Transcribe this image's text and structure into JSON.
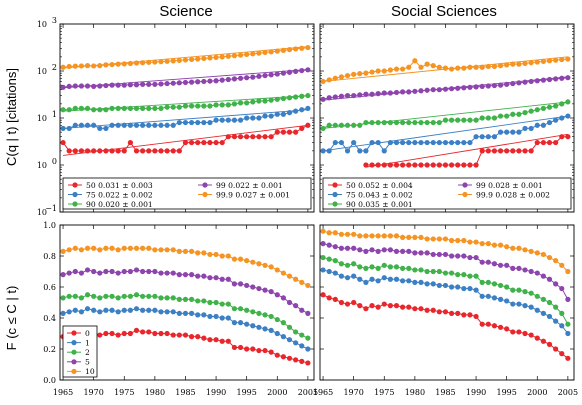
{
  "chart_data": [
    {
      "type": "line",
      "title": "Science",
      "ylabel": "C(q | t) [citations]",
      "yscale": "log",
      "ylim": [
        0.1,
        1000
      ],
      "xlim": [
        1964.5,
        2006
      ],
      "yticks": [
        {
          "v": 0.1,
          "base": "10",
          "exp": "−1"
        },
        {
          "v": 1,
          "base": "10",
          "exp": "0"
        },
        {
          "v": 10,
          "base": "10",
          "exp": "1"
        },
        {
          "v": 100,
          "base": "10",
          "exp": "2"
        },
        {
          "v": 1000,
          "base": "10",
          "exp": "3"
        }
      ],
      "legend_placement": "bottom",
      "series": [
        {
          "name": "50",
          "fit_label": "50 0.031 ± 0.003",
          "color": "#e8262b",
          "start": 1965,
          "values": [
            3,
            2,
            2,
            2,
            2,
            2,
            2,
            2,
            2,
            2,
            2,
            3,
            2,
            2,
            2,
            2,
            2,
            2,
            2,
            2,
            3,
            3,
            3,
            3,
            3,
            3,
            3,
            4,
            4,
            4,
            4,
            4,
            4,
            4,
            4,
            5,
            5,
            5,
            5,
            6,
            7
          ],
          "fit": [
            1.6,
            7
          ]
        },
        {
          "name": "75",
          "fit_label": "75 0.022 ± 0.002",
          "color": "#3b7fc4",
          "start": 1965,
          "values": [
            6,
            6,
            7,
            7,
            7,
            7,
            6,
            6,
            7,
            7,
            7,
            7,
            7,
            7,
            7,
            7,
            7,
            7,
            7,
            8,
            8,
            8,
            8,
            8,
            8,
            9,
            9,
            9,
            9,
            9,
            10,
            10,
            10,
            11,
            11,
            12,
            12,
            13,
            14,
            15,
            16
          ],
          "fit": [
            6,
            15
          ]
        },
        {
          "name": "90",
          "fit_label": "90 0.020 ± 0.001",
          "color": "#3fb24a",
          "start": 1965,
          "values": [
            15,
            15,
            16,
            16,
            16,
            15,
            15,
            15,
            16,
            16,
            16,
            16,
            16,
            16,
            16,
            16,
            16,
            17,
            17,
            17,
            18,
            18,
            18,
            18,
            18,
            19,
            19,
            19,
            20,
            21,
            21,
            22,
            23,
            23,
            24,
            25,
            26,
            27,
            28,
            29,
            30
          ],
          "fit": [
            14,
            30
          ]
        },
        {
          "name": "99",
          "fit_label": "99 0.022 ± 0.001",
          "color": "#8d44ad",
          "start": 1965,
          "values": [
            45,
            47,
            48,
            48,
            48,
            47,
            48,
            49,
            50,
            50,
            50,
            51,
            51,
            52,
            52,
            52,
            53,
            54,
            55,
            56,
            57,
            58,
            59,
            60,
            61,
            62,
            64,
            66,
            68,
            70,
            72,
            74,
            77,
            80,
            83,
            86,
            90,
            94,
            98,
            102,
            106
          ],
          "fit": [
            44,
            108
          ]
        },
        {
          "name": "99.9",
          "fit_label": "99.9 0.027 ± 0.001",
          "color": "#f59422",
          "start": 1965,
          "values": [
            120,
            125,
            127,
            128,
            130,
            128,
            130,
            135,
            137,
            140,
            142,
            145,
            148,
            150,
            153,
            155,
            158,
            161,
            164,
            168,
            172,
            176,
            180,
            185,
            190,
            195,
            200,
            206,
            212,
            218,
            225,
            232,
            240,
            248,
            256,
            265,
            275,
            285,
            295,
            305,
            315
          ],
          "fit": [
            115,
            330
          ]
        }
      ]
    },
    {
      "type": "line",
      "title": "Social Sciences",
      "ylabel": "",
      "yscale": "log",
      "ylim": [
        0.1,
        1000
      ],
      "xlim": [
        1964.5,
        2006
      ],
      "legend_placement": "bottom",
      "series": [
        {
          "name": "50",
          "fit_label": "50 0.052 ± 0.004",
          "color": "#e8262b",
          "start": 1972,
          "values": [
            1,
            1,
            1,
            1,
            1,
            1,
            1,
            1,
            1,
            1,
            1,
            1,
            1,
            1,
            1,
            1,
            1,
            1,
            1,
            2,
            2,
            2,
            2,
            2,
            2,
            2,
            2,
            2,
            3,
            3,
            3,
            3,
            4,
            4
          ],
          "fit": [
            0.9,
            4.5
          ]
        },
        {
          "name": "75",
          "fit_label": "75 0.043 ± 0.002",
          "color": "#3b7fc4",
          "start": 1965,
          "values": [
            2,
            2,
            3,
            3,
            2,
            3,
            2,
            2,
            3,
            3,
            2,
            3,
            3,
            3,
            3,
            3,
            3,
            3,
            3,
            3,
            3,
            3,
            3,
            3,
            3,
            4,
            4,
            4,
            4,
            5,
            5,
            5,
            5,
            6,
            6,
            7,
            7,
            8,
            9,
            10,
            11
          ],
          "fit": [
            2,
            11
          ]
        },
        {
          "name": "90",
          "fit_label": "90 0.035 ± 0.001",
          "color": "#3fb24a",
          "start": 1965,
          "values": [
            6,
            7,
            7,
            7,
            7,
            7,
            7,
            8,
            8,
            8,
            8,
            8,
            8,
            8,
            8,
            8,
            8,
            8,
            8,
            8,
            9,
            9,
            9,
            9,
            9,
            9,
            10,
            10,
            10,
            11,
            11,
            12,
            12,
            13,
            14,
            15,
            16,
            17,
            18,
            20,
            22
          ],
          "fit": [
            6,
            22
          ]
        },
        {
          "name": "99",
          "fit_label": "99 0.028 ± 0.001",
          "color": "#8d44ad",
          "start": 1965,
          "values": [
            25,
            27,
            28,
            29,
            30,
            30,
            31,
            32,
            32,
            33,
            34,
            34,
            35,
            36,
            36,
            37,
            38,
            39,
            40,
            40,
            41,
            42,
            43,
            44,
            45,
            46,
            47,
            48,
            49,
            50,
            52,
            54,
            56,
            58,
            60,
            62,
            64,
            66,
            68,
            70,
            72
          ],
          "fit": [
            24,
            75
          ]
        },
        {
          "name": "99.9",
          "fit_label": "99.9 0.028 ± 0.002",
          "color": "#f59422",
          "start": 1965,
          "values": [
            60,
            65,
            70,
            75,
            80,
            85,
            88,
            90,
            95,
            100,
            100,
            105,
            110,
            110,
            120,
            165,
            120,
            140,
            130,
            120,
            115,
            110,
            115,
            115,
            120,
            120,
            120,
            125,
            125,
            130,
            135,
            140,
            140,
            145,
            150,
            155,
            160,
            165,
            170,
            175,
            180
          ],
          "fit": [
            60,
            200
          ]
        }
      ]
    },
    {
      "type": "line",
      "title": "",
      "ylabel": "F (c ≤ C | t)",
      "xlabel": "",
      "ylim": [
        0.0,
        1.0
      ],
      "xlim": [
        1964.5,
        2006
      ],
      "yticks": [
        "0.0",
        "0.2",
        "0.4",
        "0.6",
        "0.8",
        "1.0"
      ],
      "xticks": [
        "1965",
        "1970",
        "1975",
        "1980",
        "1985",
        "1990",
        "1995",
        "2000",
        "2005"
      ],
      "legend_placement": "bottom-left",
      "series": [
        {
          "name": "0",
          "color": "#e8262b",
          "start": 1965,
          "values": [
            0.28,
            0.29,
            0.3,
            0.28,
            0.31,
            0.3,
            0.29,
            0.3,
            0.3,
            0.29,
            0.3,
            0.3,
            0.32,
            0.31,
            0.31,
            0.3,
            0.3,
            0.3,
            0.29,
            0.29,
            0.29,
            0.28,
            0.28,
            0.27,
            0.26,
            0.26,
            0.25,
            0.25,
            0.21,
            0.21,
            0.2,
            0.2,
            0.19,
            0.19,
            0.18,
            0.16,
            0.15,
            0.14,
            0.13,
            0.12,
            0.11
          ]
        },
        {
          "name": "1",
          "color": "#3b7fc4",
          "start": 1965,
          "values": [
            0.43,
            0.44,
            0.45,
            0.44,
            0.46,
            0.45,
            0.44,
            0.45,
            0.45,
            0.44,
            0.45,
            0.45,
            0.46,
            0.45,
            0.45,
            0.45,
            0.44,
            0.44,
            0.44,
            0.43,
            0.43,
            0.43,
            0.42,
            0.42,
            0.41,
            0.41,
            0.4,
            0.4,
            0.37,
            0.37,
            0.36,
            0.35,
            0.34,
            0.33,
            0.32,
            0.3,
            0.28,
            0.26,
            0.24,
            0.22,
            0.2
          ]
        },
        {
          "name": "2",
          "color": "#3fb24a",
          "start": 1965,
          "values": [
            0.53,
            0.54,
            0.54,
            0.53,
            0.55,
            0.54,
            0.53,
            0.54,
            0.54,
            0.53,
            0.54,
            0.54,
            0.55,
            0.54,
            0.54,
            0.54,
            0.53,
            0.53,
            0.53,
            0.52,
            0.52,
            0.52,
            0.51,
            0.51,
            0.5,
            0.5,
            0.49,
            0.49,
            0.46,
            0.46,
            0.45,
            0.44,
            0.43,
            0.42,
            0.41,
            0.39,
            0.37,
            0.34,
            0.31,
            0.29,
            0.27
          ]
        },
        {
          "name": "5",
          "color": "#8d44ad",
          "start": 1965,
          "values": [
            0.68,
            0.69,
            0.7,
            0.69,
            0.71,
            0.7,
            0.69,
            0.7,
            0.7,
            0.69,
            0.7,
            0.7,
            0.71,
            0.7,
            0.7,
            0.7,
            0.69,
            0.69,
            0.69,
            0.68,
            0.68,
            0.68,
            0.67,
            0.67,
            0.66,
            0.66,
            0.65,
            0.65,
            0.62,
            0.62,
            0.61,
            0.6,
            0.59,
            0.58,
            0.57,
            0.55,
            0.53,
            0.5,
            0.48,
            0.45,
            0.43
          ]
        },
        {
          "name": "10",
          "color": "#f59422",
          "start": 1965,
          "values": [
            0.83,
            0.84,
            0.85,
            0.84,
            0.85,
            0.85,
            0.84,
            0.85,
            0.85,
            0.84,
            0.85,
            0.85,
            0.85,
            0.85,
            0.85,
            0.84,
            0.84,
            0.84,
            0.84,
            0.83,
            0.83,
            0.83,
            0.82,
            0.82,
            0.81,
            0.81,
            0.8,
            0.8,
            0.78,
            0.78,
            0.77,
            0.76,
            0.75,
            0.74,
            0.73,
            0.71,
            0.69,
            0.67,
            0.65,
            0.63,
            0.61
          ]
        }
      ]
    },
    {
      "type": "line",
      "title": "",
      "ylabel": "",
      "ylim": [
        0.0,
        1.0
      ],
      "xlim": [
        1964.5,
        2006
      ],
      "xticks": [
        "1965",
        "1970",
        "1975",
        "1980",
        "1985",
        "1990",
        "1995",
        "2000",
        "2005"
      ],
      "series": [
        {
          "name": "0",
          "color": "#e8262b",
          "start": 1965,
          "values": [
            0.55,
            0.53,
            0.52,
            0.5,
            0.49,
            0.5,
            0.48,
            0.46,
            0.48,
            0.47,
            0.49,
            0.48,
            0.48,
            0.47,
            0.47,
            0.46,
            0.46,
            0.45,
            0.45,
            0.44,
            0.44,
            0.43,
            0.43,
            0.42,
            0.42,
            0.41,
            0.36,
            0.36,
            0.35,
            0.34,
            0.33,
            0.31,
            0.31,
            0.3,
            0.29,
            0.27,
            0.25,
            0.23,
            0.2,
            0.17,
            0.14
          ]
        },
        {
          "name": "1",
          "color": "#3b7fc4",
          "start": 1965,
          "values": [
            0.71,
            0.7,
            0.69,
            0.67,
            0.66,
            0.67,
            0.65,
            0.63,
            0.65,
            0.64,
            0.66,
            0.65,
            0.65,
            0.64,
            0.64,
            0.63,
            0.63,
            0.62,
            0.62,
            0.61,
            0.61,
            0.6,
            0.6,
            0.59,
            0.59,
            0.58,
            0.54,
            0.54,
            0.53,
            0.52,
            0.51,
            0.49,
            0.49,
            0.48,
            0.47,
            0.45,
            0.43,
            0.41,
            0.38,
            0.35,
            0.3
          ]
        },
        {
          "name": "2",
          "color": "#3fb24a",
          "start": 1965,
          "values": [
            0.79,
            0.78,
            0.77,
            0.75,
            0.74,
            0.75,
            0.73,
            0.72,
            0.73,
            0.72,
            0.74,
            0.73,
            0.73,
            0.72,
            0.72,
            0.71,
            0.71,
            0.7,
            0.7,
            0.7,
            0.69,
            0.69,
            0.68,
            0.68,
            0.67,
            0.67,
            0.63,
            0.63,
            0.62,
            0.61,
            0.6,
            0.58,
            0.58,
            0.57,
            0.56,
            0.54,
            0.52,
            0.5,
            0.47,
            0.43,
            0.36
          ]
        },
        {
          "name": "5",
          "color": "#8d44ad",
          "start": 1965,
          "values": [
            0.88,
            0.87,
            0.86,
            0.85,
            0.85,
            0.85,
            0.84,
            0.83,
            0.84,
            0.83,
            0.84,
            0.84,
            0.83,
            0.83,
            0.83,
            0.82,
            0.82,
            0.82,
            0.81,
            0.81,
            0.81,
            0.8,
            0.8,
            0.8,
            0.79,
            0.79,
            0.76,
            0.76,
            0.75,
            0.74,
            0.74,
            0.72,
            0.72,
            0.71,
            0.7,
            0.69,
            0.67,
            0.65,
            0.62,
            0.59,
            0.52
          ]
        },
        {
          "name": "10",
          "color": "#f59422",
          "start": 1965,
          "values": [
            0.96,
            0.95,
            0.95,
            0.94,
            0.94,
            0.94,
            0.93,
            0.93,
            0.93,
            0.93,
            0.93,
            0.93,
            0.93,
            0.92,
            0.92,
            0.92,
            0.92,
            0.91,
            0.91,
            0.91,
            0.91,
            0.9,
            0.9,
            0.9,
            0.89,
            0.89,
            0.88,
            0.88,
            0.87,
            0.87,
            0.86,
            0.85,
            0.85,
            0.84,
            0.83,
            0.82,
            0.81,
            0.79,
            0.77,
            0.74,
            0.7
          ]
        }
      ]
    }
  ]
}
